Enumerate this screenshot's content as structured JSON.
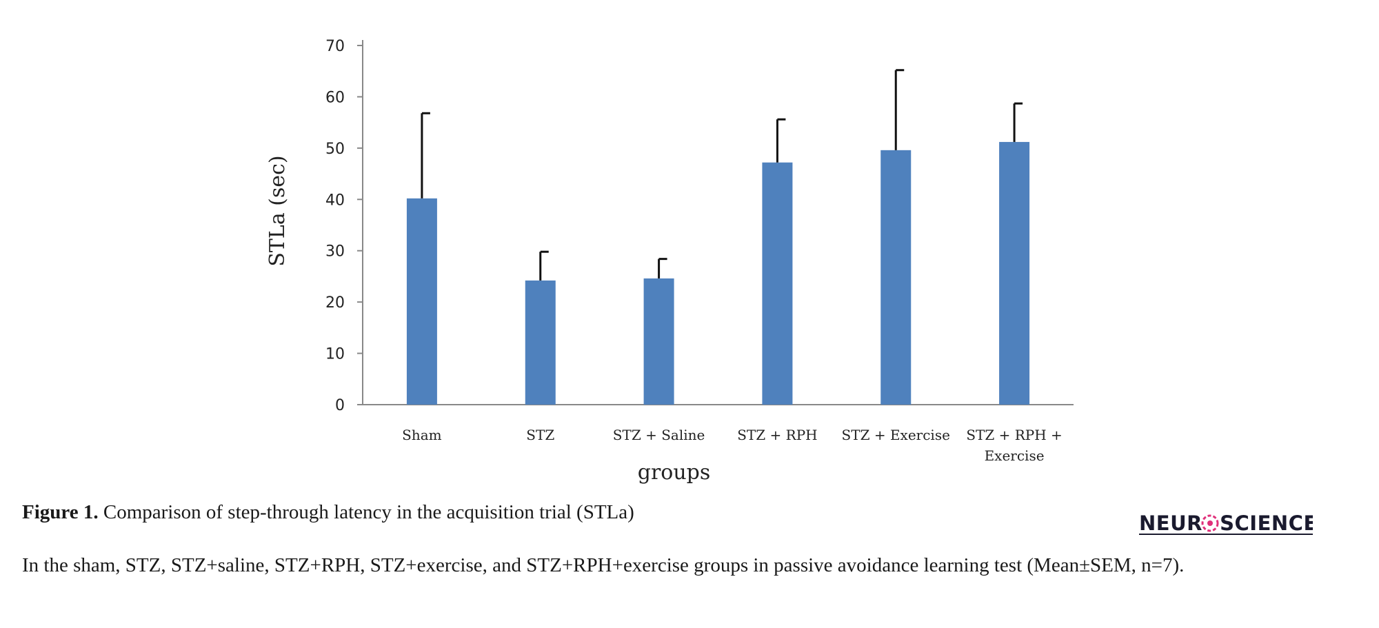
{
  "chart_data": {
    "type": "bar",
    "categories": [
      "Sham",
      "STZ",
      "STZ + Saline",
      "STZ + RPH",
      "STZ + Exercise",
      "STZ + RPH + Exercise"
    ],
    "category_lines": [
      [
        "Sham"
      ],
      [
        "STZ"
      ],
      [
        "STZ + Saline"
      ],
      [
        "STZ + RPH"
      ],
      [
        "STZ + Exercise"
      ],
      [
        "STZ + RPH +",
        "Exercise"
      ]
    ],
    "values": [
      40.2,
      24.2,
      24.6,
      47.2,
      49.6,
      51.2
    ],
    "error_upper": [
      56.8,
      29.8,
      28.4,
      55.6,
      65.2,
      58.7
    ],
    "xlabel": "groups",
    "ylabel": "STLa (sec)",
    "ylim": [
      0,
      70
    ],
    "yticks": [
      "0",
      "10",
      "20",
      "30",
      "40",
      "50",
      "60",
      "70"
    ],
    "bar_color": "#4f81bd",
    "grid": false
  },
  "caption": {
    "label": "Figure 1.",
    "text": " Comparison of step-through latency in the acquisition trial (STLa)"
  },
  "description": "In the sham, STZ, STZ+saline, STZ+RPH, STZ+exercise, and STZ+RPH+exercise groups in passive avoidance learning test (Mean±SEM, n=7).",
  "logo": {
    "text": "NEUROSCIENCE",
    "accent_color": "#e0307a"
  }
}
